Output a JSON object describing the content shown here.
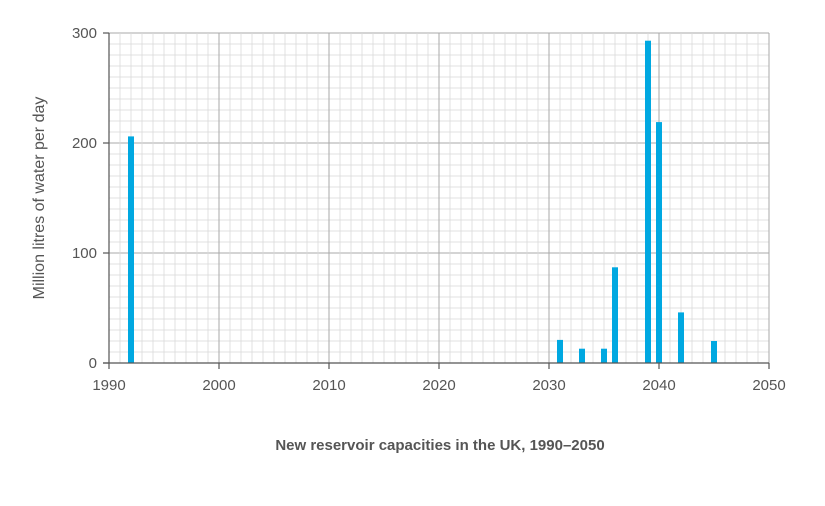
{
  "chart_data": {
    "type": "bar",
    "title": "New reservoir capacities in the UK, 1990–2050",
    "xlabel": "",
    "ylabel": "Million litres of water per day",
    "xlim": [
      1990,
      2050
    ],
    "ylim": [
      0,
      300
    ],
    "x_ticks": [
      1990,
      2000,
      2010,
      2020,
      2030,
      2040,
      2050
    ],
    "y_ticks": [
      0,
      100,
      200,
      300
    ],
    "grid": true,
    "bar_color": "#00a8e1",
    "x": [
      1992,
      2031,
      2033,
      2035,
      2036,
      2039,
      2040,
      2042,
      2045
    ],
    "values": [
      206,
      21,
      13,
      13,
      87,
      293,
      219,
      46,
      20
    ]
  }
}
